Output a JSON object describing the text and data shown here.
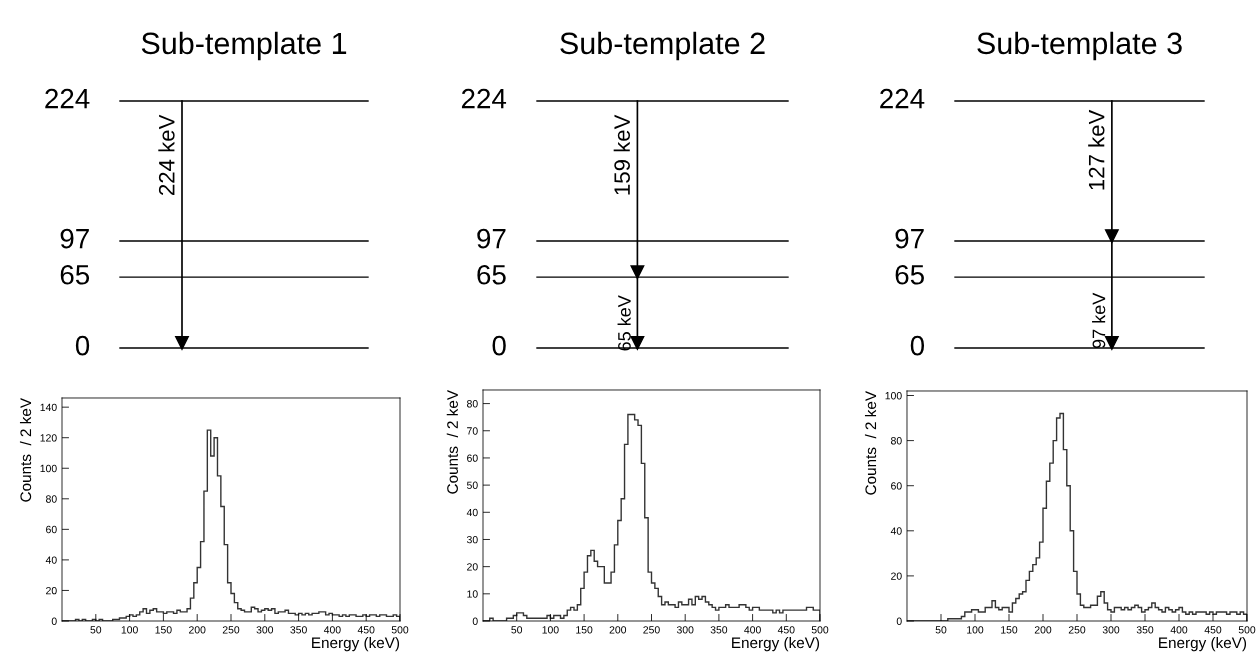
{
  "chart_data": [
    {
      "type": "other",
      "title": "Sub-template 1",
      "annotations": [
        "224",
        "97",
        "65",
        "0",
        "224 keV"
      ]
    },
    {
      "type": "other",
      "title": "Sub-template 2",
      "annotations": [
        "224",
        "97",
        "65",
        "0",
        "159 keV",
        "65 keV"
      ]
    },
    {
      "type": "other",
      "title": "Sub-template 3",
      "annotations": [
        "224",
        "97",
        "65",
        "0",
        "127 keV",
        "97 keV"
      ]
    },
    {
      "type": "histogram",
      "xlabel": "Energy (keV)",
      "ylabel": "Counts  / 2 keV",
      "color": "#333333",
      "xlim": [
        0,
        500
      ],
      "ylim": [
        0,
        146
      ],
      "xticks": [
        50,
        100,
        150,
        200,
        250,
        300,
        350,
        400,
        450,
        500
      ],
      "yticks": [
        0,
        20,
        40,
        60,
        80,
        100,
        120,
        140
      ],
      "bins": [
        0,
        5,
        10,
        15,
        20,
        25,
        30,
        35,
        40,
        45,
        50,
        55,
        60,
        65,
        70,
        75,
        80,
        85,
        90,
        95,
        100,
        105,
        110,
        115,
        120,
        125,
        130,
        135,
        140,
        145,
        150,
        155,
        160,
        165,
        170,
        175,
        180,
        185,
        190,
        195,
        200,
        205,
        210,
        215,
        220,
        225,
        230,
        235,
        240,
        245,
        250,
        255,
        260,
        265,
        270,
        275,
        280,
        285,
        290,
        295,
        300,
        305,
        310,
        315,
        320,
        325,
        330,
        335,
        340,
        345,
        350,
        355,
        360,
        365,
        370,
        375,
        380,
        385,
        390,
        395,
        400,
        405,
        410,
        415,
        420,
        425,
        430,
        435,
        440,
        445,
        450,
        455,
        460,
        465,
        470,
        475,
        480,
        485,
        490,
        495,
        500
      ],
      "values": [
        0,
        0,
        0,
        0,
        1,
        0,
        1,
        0,
        0,
        1,
        0,
        1,
        0,
        0,
        0,
        1,
        1,
        2,
        2,
        3,
        4,
        3,
        4,
        6,
        8,
        5,
        7,
        8,
        6,
        6,
        5,
        6,
        6,
        5,
        7,
        6,
        6,
        8,
        15,
        25,
        35,
        52,
        85,
        125,
        108,
        120,
        95,
        75,
        50,
        25,
        18,
        12,
        8,
        7,
        6,
        6,
        9,
        8,
        6,
        7,
        8,
        7,
        8,
        5,
        6,
        6,
        7,
        5,
        5,
        4,
        5,
        4,
        5,
        4,
        5,
        5,
        6,
        6,
        4,
        5,
        4,
        4,
        3,
        4,
        3,
        4,
        4,
        3,
        3,
        4,
        3,
        4,
        4,
        3,
        4,
        4,
        3,
        3,
        4,
        3
      ]
    },
    {
      "type": "histogram",
      "xlabel": "Energy (keV)",
      "ylabel": "Counts  / 2 keV",
      "color": "#333333",
      "xlim": [
        0,
        500
      ],
      "ylim": [
        0,
        85
      ],
      "xticks": [
        50,
        100,
        150,
        200,
        250,
        300,
        350,
        400,
        450,
        500
      ],
      "yticks": [
        0,
        10,
        20,
        30,
        40,
        50,
        60,
        70,
        80
      ],
      "bins": [
        0,
        5,
        10,
        15,
        20,
        25,
        30,
        35,
        40,
        45,
        50,
        55,
        60,
        65,
        70,
        75,
        80,
        85,
        90,
        95,
        100,
        105,
        110,
        115,
        120,
        125,
        130,
        135,
        140,
        145,
        150,
        155,
        160,
        165,
        170,
        175,
        180,
        185,
        190,
        195,
        200,
        205,
        210,
        215,
        220,
        225,
        230,
        235,
        240,
        245,
        250,
        255,
        260,
        265,
        270,
        275,
        280,
        285,
        290,
        295,
        300,
        305,
        310,
        315,
        320,
        325,
        330,
        335,
        340,
        345,
        350,
        355,
        360,
        365,
        370,
        375,
        380,
        385,
        390,
        395,
        400,
        405,
        410,
        415,
        420,
        425,
        430,
        435,
        440,
        445,
        450,
        455,
        460,
        465,
        470,
        475,
        480,
        485,
        490,
        495,
        500
      ],
      "values": [
        0,
        0,
        1,
        0,
        0,
        0,
        0,
        1,
        1,
        2,
        3,
        3,
        2,
        1,
        1,
        1,
        1,
        1,
        1,
        2,
        1,
        2,
        2,
        1,
        2,
        4,
        5,
        4,
        6,
        12,
        18,
        24,
        26,
        22,
        20,
        20,
        14,
        14,
        18,
        28,
        37,
        45,
        65,
        76,
        76,
        74,
        72,
        58,
        38,
        18,
        14,
        12,
        9,
        6,
        7,
        6,
        6,
        5,
        7,
        6,
        6,
        8,
        6,
        9,
        8,
        9,
        7,
        6,
        5,
        4,
        5,
        5,
        6,
        5,
        5,
        5,
        6,
        6,
        5,
        4,
        5,
        5,
        4,
        4,
        4,
        4,
        3,
        4,
        3,
        4,
        4,
        4,
        4,
        4,
        4,
        4,
        5,
        5,
        4,
        4
      ]
    },
    {
      "type": "histogram",
      "xlabel": "Energy (keV)",
      "ylabel": "Counts  / 2 keV",
      "color": "#333333",
      "xlim": [
        0,
        500
      ],
      "ylim": [
        0,
        102
      ],
      "xticks": [
        50,
        100,
        150,
        200,
        250,
        300,
        350,
        400,
        450,
        500
      ],
      "yticks": [
        0,
        20,
        40,
        60,
        80,
        100
      ],
      "bins": [
        0,
        5,
        10,
        15,
        20,
        25,
        30,
        35,
        40,
        45,
        50,
        55,
        60,
        65,
        70,
        75,
        80,
        85,
        90,
        95,
        100,
        105,
        110,
        115,
        120,
        125,
        130,
        135,
        140,
        145,
        150,
        155,
        160,
        165,
        170,
        175,
        180,
        185,
        190,
        195,
        200,
        205,
        210,
        215,
        220,
        225,
        230,
        235,
        240,
        245,
        250,
        255,
        260,
        265,
        270,
        275,
        280,
        285,
        290,
        295,
        300,
        305,
        310,
        315,
        320,
        325,
        330,
        335,
        340,
        345,
        350,
        355,
        360,
        365,
        370,
        375,
        380,
        385,
        390,
        395,
        400,
        405,
        410,
        415,
        420,
        425,
        430,
        435,
        440,
        445,
        450,
        455,
        460,
        465,
        470,
        475,
        480,
        485,
        490,
        495,
        500
      ],
      "values": [
        0,
        0,
        0,
        0,
        0,
        0,
        0,
        0,
        0,
        0,
        0,
        0,
        1,
        1,
        1,
        1,
        2,
        4,
        4,
        5,
        5,
        4,
        4,
        6,
        6,
        9,
        6,
        5,
        6,
        6,
        4,
        8,
        10,
        12,
        13,
        18,
        22,
        25,
        28,
        35,
        50,
        62,
        70,
        80,
        90,
        92,
        76,
        60,
        40,
        22,
        12,
        7,
        6,
        6,
        7,
        7,
        11,
        13,
        8,
        5,
        4,
        6,
        6,
        5,
        6,
        5,
        6,
        7,
        6,
        4,
        5,
        6,
        8,
        6,
        5,
        4,
        6,
        5,
        4,
        5,
        6,
        4,
        3,
        4,
        3,
        4,
        4,
        4,
        3,
        4,
        3,
        4,
        4,
        4,
        3,
        4,
        4,
        3,
        4,
        3
      ]
    }
  ]
}
